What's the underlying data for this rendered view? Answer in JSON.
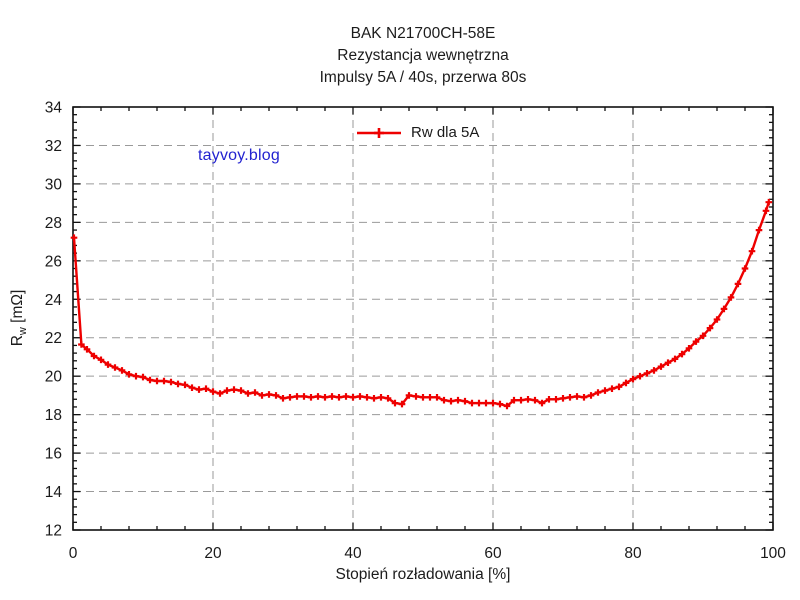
{
  "title": {
    "line1": "BAK N21700CH-58E",
    "line2": "Rezystancja wewnętrzna",
    "line3": "Impulsy 5A / 40s, przerwa 80s"
  },
  "watermark": {
    "text": "tayvoy.blog",
    "color": "#2222d0"
  },
  "legend": {
    "label": "Rw dla 5A"
  },
  "axis_labels": {
    "x": "Stopień rozładowania [%]",
    "y_base": "R",
    "y_sub": "w",
    "y_unit": " [mΩ]"
  },
  "colors": {
    "series": "#ee0000",
    "grid": "#9a9a9a",
    "axis": "#111111",
    "text": "#1a1a1a"
  },
  "chart_data": {
    "type": "line",
    "title": "BAK N21700CH-58E — Rezystancja wewnętrzna — Impulsy 5A / 40s, przerwa 80s",
    "xlabel": "Stopień rozładowania [%]",
    "ylabel": "Rw [mΩ]",
    "xlim": [
      0,
      100
    ],
    "ylim": [
      12,
      34
    ],
    "x_major": 20,
    "x_minor": 4,
    "y_major": 2,
    "y_minor": 0.4,
    "grid": "dashed at major ticks, mirrored inward ticks on all four sides",
    "legend_position": "top-center inside plot, no box",
    "series": [
      {
        "name": "Rw dla 5A",
        "color": "#ee0000",
        "marker": "plus",
        "points": [
          [
            0.15,
            27.2
          ],
          [
            1.2,
            21.65
          ],
          [
            2,
            21.4
          ],
          [
            3,
            21.05
          ],
          [
            4,
            20.85
          ],
          [
            5,
            20.6
          ],
          [
            6,
            20.45
          ],
          [
            7,
            20.3
          ],
          [
            8,
            20.1
          ],
          [
            9,
            20.0
          ],
          [
            10,
            19.95
          ],
          [
            11,
            19.8
          ],
          [
            12,
            19.75
          ],
          [
            13,
            19.75
          ],
          [
            14,
            19.7
          ],
          [
            15,
            19.6
          ],
          [
            16,
            19.55
          ],
          [
            17,
            19.4
          ],
          [
            18,
            19.3
          ],
          [
            19,
            19.35
          ],
          [
            20,
            19.2
          ],
          [
            21,
            19.1
          ],
          [
            22,
            19.25
          ],
          [
            23,
            19.3
          ],
          [
            24,
            19.25
          ],
          [
            25,
            19.1
          ],
          [
            26,
            19.15
          ],
          [
            27,
            19.0
          ],
          [
            28,
            19.05
          ],
          [
            29,
            19.0
          ],
          [
            30,
            18.85
          ],
          [
            31,
            18.9
          ],
          [
            32,
            18.95
          ],
          [
            33,
            18.95
          ],
          [
            34,
            18.9
          ],
          [
            35,
            18.95
          ],
          [
            36,
            18.9
          ],
          [
            37,
            18.95
          ],
          [
            38,
            18.9
          ],
          [
            39,
            18.95
          ],
          [
            40,
            18.9
          ],
          [
            41,
            18.95
          ],
          [
            42,
            18.9
          ],
          [
            43,
            18.85
          ],
          [
            44,
            18.9
          ],
          [
            45,
            18.85
          ],
          [
            46,
            18.6
          ],
          [
            47,
            18.55
          ],
          [
            48,
            19.0
          ],
          [
            49,
            18.95
          ],
          [
            50,
            18.9
          ],
          [
            51,
            18.9
          ],
          [
            52,
            18.9
          ],
          [
            53,
            18.75
          ],
          [
            54,
            18.7
          ],
          [
            55,
            18.75
          ],
          [
            56,
            18.7
          ],
          [
            57,
            18.6
          ],
          [
            58,
            18.6
          ],
          [
            59,
            18.6
          ],
          [
            60,
            18.6
          ],
          [
            61,
            18.55
          ],
          [
            62,
            18.45
          ],
          [
            63,
            18.75
          ],
          [
            64,
            18.75
          ],
          [
            65,
            18.8
          ],
          [
            66,
            18.75
          ],
          [
            67,
            18.6
          ],
          [
            68,
            18.8
          ],
          [
            69,
            18.8
          ],
          [
            70,
            18.85
          ],
          [
            71,
            18.9
          ],
          [
            72,
            18.95
          ],
          [
            73,
            18.9
          ],
          [
            74,
            19.0
          ],
          [
            75,
            19.15
          ],
          [
            76,
            19.25
          ],
          [
            77,
            19.35
          ],
          [
            78,
            19.45
          ],
          [
            79,
            19.65
          ],
          [
            80,
            19.85
          ],
          [
            81,
            20.0
          ],
          [
            82,
            20.15
          ],
          [
            83,
            20.3
          ],
          [
            84,
            20.5
          ],
          [
            85,
            20.7
          ],
          [
            86,
            20.9
          ],
          [
            87,
            21.15
          ],
          [
            88,
            21.45
          ],
          [
            89,
            21.8
          ],
          [
            90,
            22.1
          ],
          [
            91,
            22.5
          ],
          [
            92,
            22.95
          ],
          [
            93,
            23.5
          ],
          [
            94,
            24.1
          ],
          [
            95,
            24.8
          ],
          [
            96,
            25.6
          ],
          [
            97,
            26.5
          ],
          [
            98,
            27.6
          ],
          [
            99,
            28.6
          ],
          [
            99.4,
            29.05
          ]
        ]
      }
    ]
  }
}
